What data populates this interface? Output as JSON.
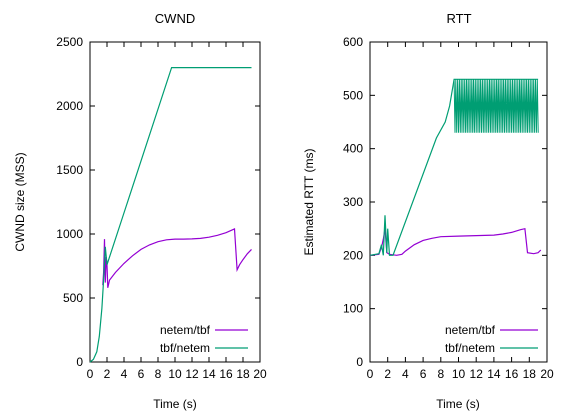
{
  "chart_data": [
    {
      "type": "line",
      "title": "CWND",
      "xlabel": "Time (s)",
      "ylabel": "CWND size (MSS)",
      "xlim": [
        0,
        20
      ],
      "ylim": [
        0,
        2500
      ],
      "x_ticks": [
        "0",
        "2",
        "4",
        "6",
        "8",
        "10",
        "12",
        "14",
        "16",
        "18",
        "20"
      ],
      "y_ticks": [
        "0",
        "500",
        "1000",
        "1500",
        "2000",
        "2500"
      ],
      "legend_position": "bottom-right",
      "series": [
        {
          "name": "netem/tbf",
          "color": "#9400d3",
          "points": [
            [
              1.5,
              600
            ],
            [
              1.6,
              700
            ],
            [
              1.7,
              960
            ],
            [
              1.8,
              620
            ],
            [
              1.9,
              820
            ],
            [
              2.0,
              760
            ],
            [
              2.1,
              580
            ],
            [
              2.3,
              640
            ],
            [
              3,
              700
            ],
            [
              4,
              770
            ],
            [
              5,
              830
            ],
            [
              6,
              880
            ],
            [
              7,
              915
            ],
            [
              8,
              940
            ],
            [
              9,
              955
            ],
            [
              10,
              960
            ],
            [
              11,
              960
            ],
            [
              12,
              962
            ],
            [
              13,
              966
            ],
            [
              14,
              975
            ],
            [
              15,
              990
            ],
            [
              16,
              1010
            ],
            [
              17,
              1040
            ],
            [
              17.3,
              720
            ],
            [
              17.6,
              760
            ],
            [
              18,
              800
            ],
            [
              18.5,
              845
            ],
            [
              19,
              880
            ]
          ]
        },
        {
          "name": "tbf/netem",
          "color": "#009e73",
          "points": [
            [
              0,
              0
            ],
            [
              0.4,
              20
            ],
            [
              0.8,
              80
            ],
            [
              1.1,
              200
            ],
            [
              1.4,
              420
            ],
            [
              1.6,
              640
            ],
            [
              1.8,
              900
            ],
            [
              2.0,
              760
            ],
            [
              9.6,
              2300
            ],
            [
              19,
              2300
            ]
          ]
        }
      ]
    },
    {
      "type": "line",
      "title": "RTT",
      "xlabel": "Time (s)",
      "ylabel": "Estimated RTT (ms)",
      "xlim": [
        0,
        20
      ],
      "ylim": [
        0,
        600
      ],
      "x_ticks": [
        "0",
        "2",
        "4",
        "6",
        "8",
        "10",
        "12",
        "14",
        "16",
        "18",
        "20"
      ],
      "y_ticks": [
        "0",
        "100",
        "200",
        "300",
        "400",
        "500",
        "600"
      ],
      "legend_position": "bottom-right",
      "series": [
        {
          "name": "netem/tbf",
          "color": "#9400d3",
          "points": [
            [
              0,
              200
            ],
            [
              1,
              202
            ],
            [
              1.3,
              215
            ],
            [
              1.5,
              230
            ],
            [
              1.7,
              250
            ],
            [
              1.9,
              205
            ],
            [
              2.2,
              202
            ],
            [
              3,
              200
            ],
            [
              3.6,
              202
            ],
            [
              4,
              208
            ],
            [
              5,
              220
            ],
            [
              6,
              228
            ],
            [
              7,
              232
            ],
            [
              8,
              235
            ],
            [
              10,
              236
            ],
            [
              12,
              237
            ],
            [
              14,
              238
            ],
            [
              15,
              240
            ],
            [
              16,
              243
            ],
            [
              17,
              248
            ],
            [
              17.5,
              250
            ],
            [
              17.8,
              205
            ],
            [
              18.5,
              203
            ],
            [
              19,
              205
            ],
            [
              19.3,
              210
            ]
          ]
        },
        {
          "name": "tbf/netem",
          "color": "#009e73",
          "points": [
            [
              0,
              200
            ],
            [
              1,
              203
            ],
            [
              1.3,
              220
            ],
            [
              1.5,
              200
            ],
            [
              1.7,
              275
            ],
            [
              1.9,
              205
            ],
            [
              2.0,
              250
            ],
            [
              2.2,
              200
            ],
            [
              2.6,
              200
            ],
            [
              7.5,
              420
            ],
            [
              8.5,
              450
            ],
            [
              9,
              480
            ],
            [
              9.5,
              530
            ],
            [
              19,
              530
            ]
          ],
          "band": {
            "x_start": 9.5,
            "x_end": 19.0,
            "low": 430,
            "high": 530
          }
        }
      ]
    }
  ]
}
